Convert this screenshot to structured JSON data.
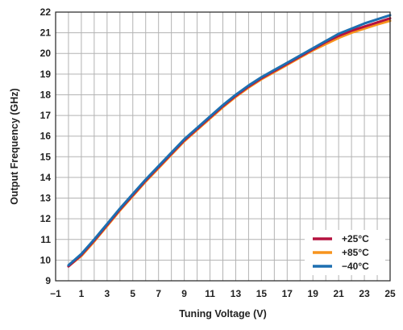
{
  "chart_data": {
    "type": "line",
    "title": "",
    "xlabel": "Tuning Voltage (V)",
    "ylabel": "Output Frequency (GHz)",
    "xlim": [
      -1,
      25
    ],
    "ylim": [
      9,
      22
    ],
    "x_ticks": [
      -1,
      1,
      3,
      5,
      7,
      9,
      11,
      13,
      15,
      17,
      19,
      21,
      23,
      25
    ],
    "x_tick_labels": [
      "−1",
      "1",
      "3",
      "5",
      "7",
      "9",
      "11",
      "13",
      "15",
      "17",
      "19",
      "21",
      "23",
      "25"
    ],
    "y_ticks": [
      9,
      10,
      11,
      12,
      13,
      14,
      15,
      16,
      17,
      18,
      19,
      20,
      21,
      22
    ],
    "grid": true,
    "grid_minor_x_step": 1,
    "legend_position": "bottom-right",
    "series": [
      {
        "name": "+25°C",
        "color": "#b5123f",
        "x": [
          0,
          1,
          2,
          3,
          4,
          5,
          6,
          7,
          8,
          9,
          10,
          11,
          12,
          13,
          14,
          15,
          16,
          17,
          18,
          19,
          20,
          21,
          22,
          23,
          24,
          25
        ],
        "y": [
          9.7,
          10.25,
          10.95,
          11.7,
          12.45,
          13.15,
          13.85,
          14.5,
          15.15,
          15.8,
          16.35,
          16.9,
          17.45,
          17.95,
          18.4,
          18.8,
          19.15,
          19.5,
          19.85,
          20.2,
          20.55,
          20.85,
          21.1,
          21.3,
          21.5,
          21.7
        ]
      },
      {
        "name": "+85°C",
        "color": "#f7941d",
        "x": [
          0,
          1,
          2,
          3,
          4,
          5,
          6,
          7,
          8,
          9,
          10,
          11,
          12,
          13,
          14,
          15,
          16,
          17,
          18,
          19,
          20,
          21,
          22,
          23,
          24,
          25
        ],
        "y": [
          9.7,
          10.2,
          10.9,
          11.65,
          12.4,
          13.1,
          13.8,
          14.45,
          15.1,
          15.75,
          16.3,
          16.85,
          17.4,
          17.9,
          18.35,
          18.75,
          19.1,
          19.45,
          19.8,
          20.15,
          20.45,
          20.75,
          21.0,
          21.2,
          21.4,
          21.58
        ]
      },
      {
        "name": "−40°C",
        "color": "#1d6fb0",
        "x": [
          0,
          1,
          2,
          3,
          4,
          5,
          6,
          7,
          8,
          9,
          10,
          11,
          12,
          13,
          14,
          15,
          16,
          17,
          18,
          19,
          20,
          21,
          22,
          23,
          24,
          25
        ],
        "y": [
          9.75,
          10.3,
          11.0,
          11.75,
          12.5,
          13.2,
          13.9,
          14.55,
          15.2,
          15.85,
          16.4,
          16.95,
          17.5,
          18.0,
          18.45,
          18.85,
          19.2,
          19.55,
          19.9,
          20.25,
          20.6,
          20.95,
          21.2,
          21.45,
          21.65,
          21.85
        ]
      }
    ]
  }
}
